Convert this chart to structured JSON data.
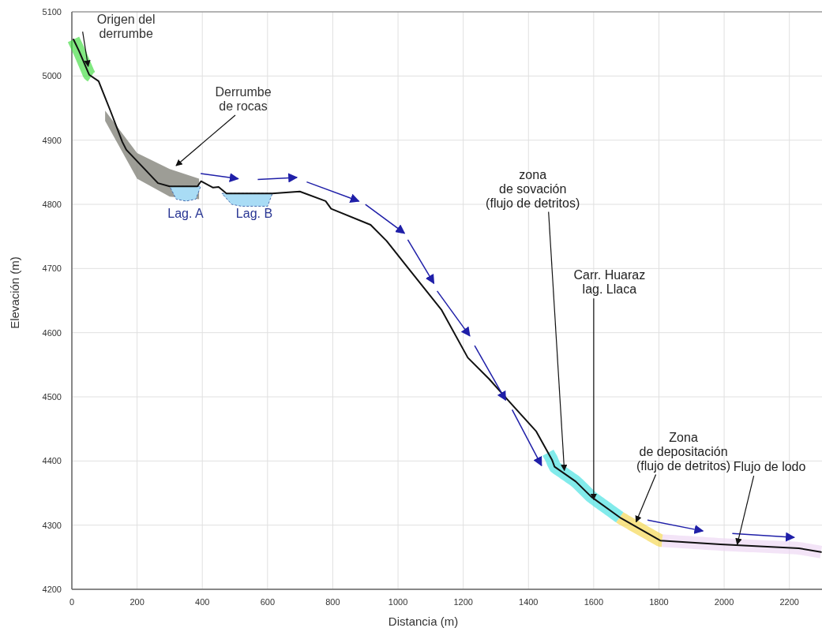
{
  "chart_data": {
    "type": "line",
    "xlabel": "Distancia (m)",
    "ylabel": "Elevación (m)",
    "xlim": [
      0,
      2300
    ],
    "ylim": [
      4200,
      5100
    ],
    "xticks": [
      0,
      200,
      400,
      600,
      800,
      1000,
      1200,
      1400,
      1600,
      1800,
      2000,
      2200
    ],
    "yticks": [
      4200,
      4300,
      4400,
      4500,
      4600,
      4700,
      4800,
      4900,
      5000,
      5100
    ],
    "grid": true,
    "series": [
      {
        "color": "#111111",
        "x": [
          5,
          22,
          53,
          82,
          118,
          155,
          167,
          264,
          300,
          385,
          396,
          433,
          450,
          474,
          614,
          699,
          778,
          795,
          916,
          965,
          1037,
          1134,
          1214,
          1279,
          1344,
          1424,
          1472,
          1480,
          1545,
          1593,
          1683,
          1804,
          1988,
          2229,
          2297
        ],
        "values": [
          5057,
          5039,
          5002,
          4992,
          4946,
          4897,
          4885,
          4833,
          4828,
          4828,
          4836,
          4826,
          4827,
          4817,
          4817,
          4820,
          4805,
          4793,
          4768,
          4743,
          4697,
          4635,
          4561,
          4528,
          4491,
          4446,
          4402,
          4391,
          4368,
          4344,
          4311,
          4276,
          4270,
          4264,
          4258
        ]
      }
    ],
    "annotations": [
      {
        "text": "Origen del\nderrumbe",
        "x": 50,
        "y": 5015
      },
      "Derrumbe\nde rocas",
      "Lag. A",
      "Lag. B",
      {
        "text": "zona\nde sovación\n(flujo de detritos)",
        "x": 1510,
        "y": 4385
      },
      {
        "text": "Carr. Huaraz\nlag. Llaca",
        "x": 1600,
        "y": 4340
      },
      {
        "text": "Zona\nde depositación\n(flujo de detritos)",
        "x": 1730,
        "y": 4305
      },
      {
        "text": "Flujo de lodo",
        "x": 2040,
        "y": 4270
      }
    ]
  }
}
